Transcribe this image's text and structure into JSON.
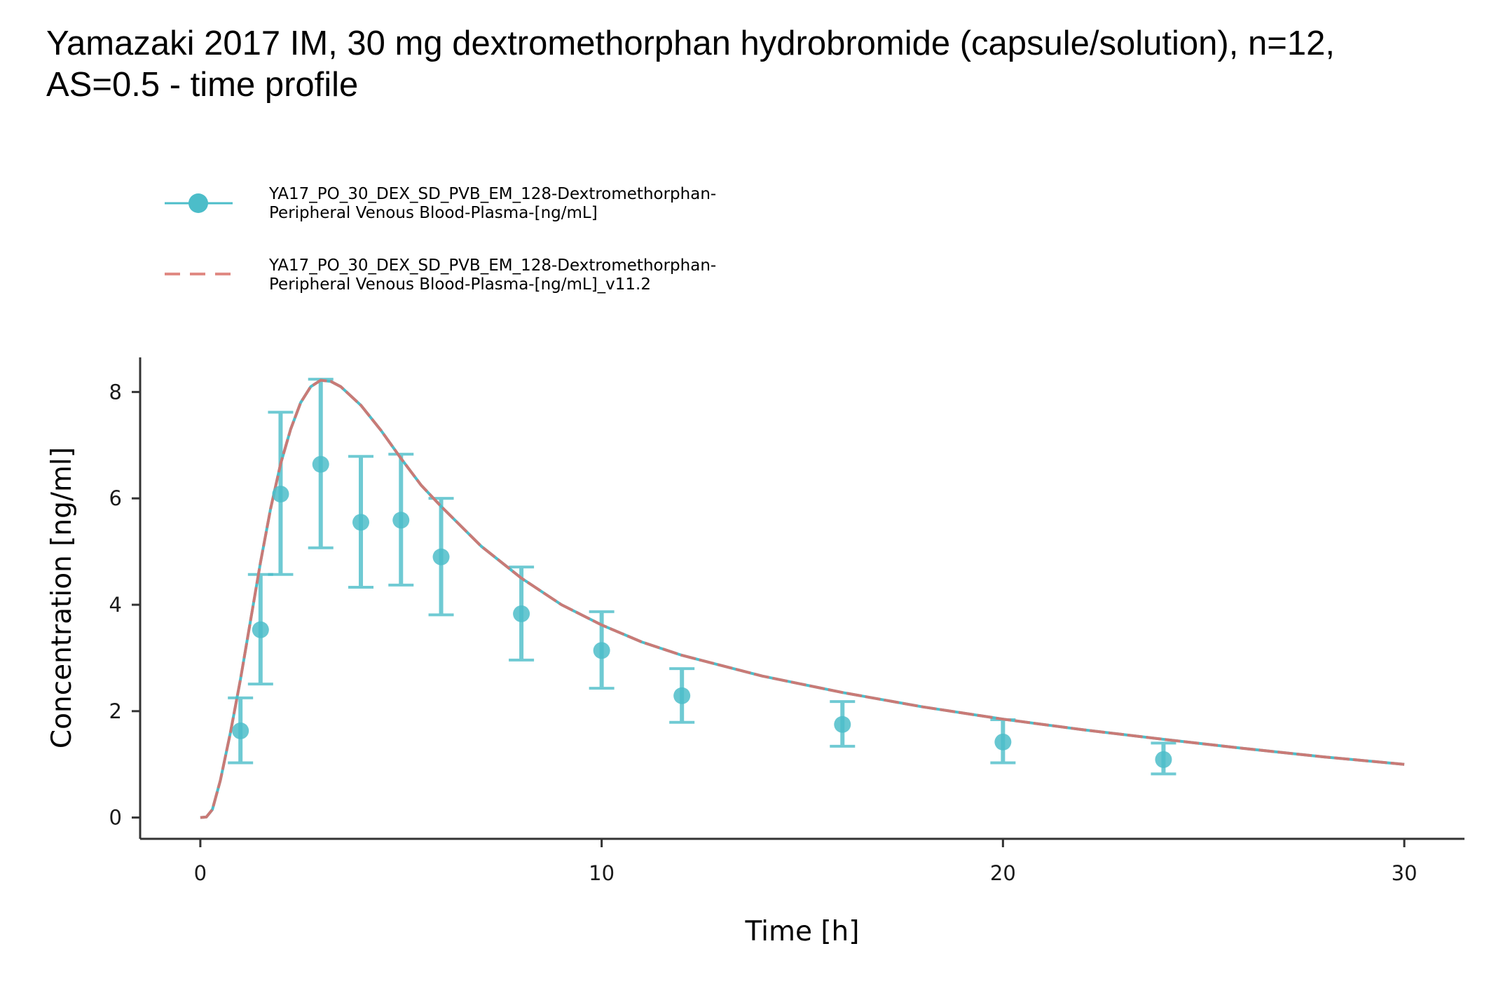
{
  "chart_data": {
    "type": "line",
    "title_line1": "Yamazaki 2017 IM, 30 mg dextromethorphan hydrobromide (capsule/solution), n=12,",
    "title_line2": "AS=0.5 - time profile",
    "xlabel": "Time [h]",
    "ylabel": "Concentration [ng/ml]",
    "xlim": [
      -1.5,
      31.5
    ],
    "ylim": [
      -0.4,
      8.65
    ],
    "x_ticks": [
      0,
      10,
      20,
      30
    ],
    "y_ticks": [
      0,
      2,
      4,
      6,
      8
    ],
    "grid": false,
    "legend_position": "top-left",
    "colors": {
      "observed": "#4cbdc9",
      "simulated": "#e08a84",
      "axis": "#333333"
    },
    "observed": {
      "name_line1": "YA17_PO_30_DEX_SD_PVB_EM_128-Dextromethorphan-",
      "name_line2": "Peripheral Venous Blood-Plasma-[ng/mL]",
      "points": [
        {
          "x": 1.0,
          "y": 1.63,
          "ymin": 1.03,
          "ymax": 2.25
        },
        {
          "x": 1.5,
          "y": 3.53,
          "ymin": 2.51,
          "ymax": 4.57
        },
        {
          "x": 2.0,
          "y": 6.08,
          "ymin": 4.57,
          "ymax": 7.62
        },
        {
          "x": 3.0,
          "y": 6.64,
          "ymin": 5.07,
          "ymax": 8.24
        },
        {
          "x": 4.0,
          "y": 5.55,
          "ymin": 4.33,
          "ymax": 6.79
        },
        {
          "x": 5.0,
          "y": 5.59,
          "ymin": 4.37,
          "ymax": 6.83
        },
        {
          "x": 6.0,
          "y": 4.9,
          "ymin": 3.81,
          "ymax": 6.0
        },
        {
          "x": 8.0,
          "y": 3.83,
          "ymin": 2.96,
          "ymax": 4.71
        },
        {
          "x": 10.0,
          "y": 3.14,
          "ymin": 2.43,
          "ymax": 3.87
        },
        {
          "x": 12.0,
          "y": 2.29,
          "ymin": 1.79,
          "ymax": 2.8
        },
        {
          "x": 16.0,
          "y": 1.75,
          "ymin": 1.34,
          "ymax": 2.18
        },
        {
          "x": 20.0,
          "y": 1.42,
          "ymin": 1.03,
          "ymax": 1.84
        },
        {
          "x": 24.0,
          "y": 1.09,
          "ymin": 0.82,
          "ymax": 1.4
        }
      ]
    },
    "simulated": {
      "name_line1": "YA17_PO_30_DEX_SD_PVB_EM_128-Dextromethorphan-",
      "name_line2": "Peripheral Venous Blood-Plasma-[ng/mL]_v11.2",
      "points": [
        {
          "x": 0,
          "y": 0
        },
        {
          "x": 0.15,
          "y": 0.01
        },
        {
          "x": 0.3,
          "y": 0.15
        },
        {
          "x": 0.5,
          "y": 0.7
        },
        {
          "x": 0.75,
          "y": 1.6
        },
        {
          "x": 1.0,
          "y": 2.6
        },
        {
          "x": 1.25,
          "y": 3.7
        },
        {
          "x": 1.5,
          "y": 4.8
        },
        {
          "x": 1.75,
          "y": 5.8
        },
        {
          "x": 2.0,
          "y": 6.65
        },
        {
          "x": 2.25,
          "y": 7.3
        },
        {
          "x": 2.5,
          "y": 7.8
        },
        {
          "x": 2.75,
          "y": 8.1
        },
        {
          "x": 3.0,
          "y": 8.22
        },
        {
          "x": 3.25,
          "y": 8.2
        },
        {
          "x": 3.5,
          "y": 8.1
        },
        {
          "x": 4.0,
          "y": 7.75
        },
        {
          "x": 4.5,
          "y": 7.28
        },
        {
          "x": 5.0,
          "y": 6.75
        },
        {
          "x": 5.5,
          "y": 6.25
        },
        {
          "x": 6.0,
          "y": 5.85
        },
        {
          "x": 7.0,
          "y": 5.1
        },
        {
          "x": 8.0,
          "y": 4.5
        },
        {
          "x": 9.0,
          "y": 4.0
        },
        {
          "x": 10.0,
          "y": 3.62
        },
        {
          "x": 11.0,
          "y": 3.3
        },
        {
          "x": 12.0,
          "y": 3.05
        },
        {
          "x": 14.0,
          "y": 2.66
        },
        {
          "x": 16.0,
          "y": 2.35
        },
        {
          "x": 18.0,
          "y": 2.08
        },
        {
          "x": 20.0,
          "y": 1.85
        },
        {
          "x": 22.0,
          "y": 1.65
        },
        {
          "x": 24.0,
          "y": 1.47
        },
        {
          "x": 26.0,
          "y": 1.3
        },
        {
          "x": 28.0,
          "y": 1.14
        },
        {
          "x": 30.0,
          "y": 1.0
        }
      ]
    }
  }
}
